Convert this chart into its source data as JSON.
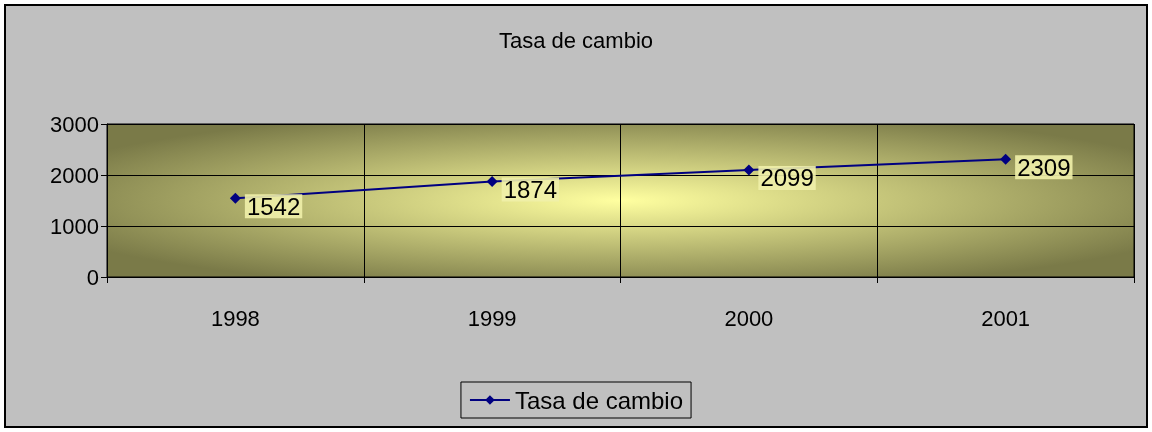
{
  "chart_data": {
    "type": "line",
    "title": "Tasa de cambio",
    "categories": [
      "1998",
      "1999",
      "2000",
      "2001"
    ],
    "series": [
      {
        "name": "Tasa de cambio",
        "color": "#000080",
        "values": [
          1542,
          1874,
          2099,
          2309
        ]
      }
    ],
    "ylim": [
      0,
      3000
    ],
    "yticks": [
      0,
      1000,
      2000,
      3000
    ],
    "grid": true,
    "legend": "bottom",
    "marker": "diamond",
    "line_style": "solid",
    "data_labels": true
  }
}
